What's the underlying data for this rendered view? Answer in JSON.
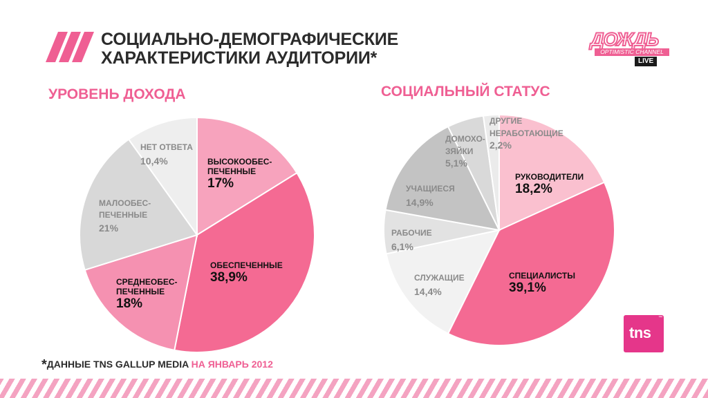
{
  "header": {
    "title_line1": "СОЦИАЛЬНО-ДЕМОГРАФИЧЕСКИЕ",
    "title_line2": "ХАРАКТЕРИСТИКИ АУДИТОРИИ*"
  },
  "logo": {
    "word": "ДОЖДЬ",
    "tagline": "OPTIMISTIC CHANNEL",
    "badge": "LIVE"
  },
  "colors": {
    "accent": "#ef5f93",
    "deep_pink": "#f46a93",
    "light_pink": "#f7a3bd",
    "pale_pink": "#fac0cf",
    "grey": "#c6c6c6",
    "light_grey": "#e4e4e4",
    "pale_grey": "#f0f0f0",
    "tns": "#e5368a"
  },
  "chart_data": [
    {
      "type": "pie",
      "title": "УРОВЕНЬ ДОХОДА",
      "slices": [
        {
          "label": "ВЫСОКООБЕС-ПЕЧЕННЫЕ",
          "label_line1": "ВЫСОКООБЕС-",
          "label_line2": "ПЕЧЕННЫЕ",
          "value": 17,
          "display": "17%",
          "color": "#f7a3bd"
        },
        {
          "label": "ОБЕСПЕЧЕННЫЕ",
          "label_line1": "ОБЕСПЕЧЕННЫЕ",
          "value": 38.9,
          "display": "38,9%",
          "color": "#f46a93"
        },
        {
          "label": "СРЕДНЕОБЕС-ПЕЧЕННЫЕ",
          "label_line1": "СРЕДНЕОБЕС-",
          "label_line2": "ПЕЧЕННЫЕ",
          "value": 18,
          "display": "18%",
          "color": "#f591b1"
        },
        {
          "label": "МАЛООБЕС-ПЕЧЕННЫЕ",
          "label_line1": "МАЛООБЕС-",
          "label_line2": "ПЕЧЕННЫЕ",
          "value": 21,
          "display": "21%",
          "color": "#d8d8d8"
        },
        {
          "label": "НЕТ ОТВЕТА",
          "label_line1": "НЕТ ОТВЕТА",
          "value": 10.4,
          "display": "10,4%",
          "color": "#eeeeee"
        }
      ]
    },
    {
      "type": "pie",
      "title": "СОЦИАЛЬНЫЙ СТАТУС",
      "slices": [
        {
          "label": "РУКОВОДИТЕЛИ",
          "label_line1": "РУКОВОДИТЕЛИ",
          "value": 18.2,
          "display": "18,2%",
          "color": "#fac0cf"
        },
        {
          "label": "СПЕЦИАЛИСТЫ",
          "label_line1": "СПЕЦИАЛИСТЫ",
          "value": 39.1,
          "display": "39,1%",
          "color": "#f46a93"
        },
        {
          "label": "СЛУЖАЩИЕ",
          "label_line1": "СЛУЖАЩИЕ",
          "value": 14.4,
          "display": "14,4%",
          "color": "#f2f2f2"
        },
        {
          "label": "РАБОЧИЕ",
          "label_line1": "РАБОЧИЕ",
          "value": 6.1,
          "display": "6,1%",
          "color": "#e2e2e2"
        },
        {
          "label": "УЧАЩИЕСЯ",
          "label_line1": "УЧАЩИЕСЯ",
          "value": 14.9,
          "display": "14,9%",
          "color": "#c3c3c3"
        },
        {
          "label": "ДОМОХОЗЯЙКИ",
          "label_line1": "ДОМОХО-",
          "label_line2": "ЗЯЙКИ",
          "value": 5.1,
          "display": "5,1%",
          "color": "#d9d9d9"
        },
        {
          "label": "ДРУГИЕ НЕРАБОТАЮЩИЕ",
          "label_line1": "ДРУГИЕ",
          "label_line2": "НЕРАБОТАЮЩИЕ",
          "value": 2.2,
          "display": "2,2%",
          "color": "#ebebeb"
        }
      ]
    }
  ],
  "tns_logo": {
    "text": "tns",
    "mark": "™"
  },
  "footnote": {
    "star": "*",
    "text": "ДАННЫЕ TNS GALLUP MEDIA",
    "date": "НА ЯНВАРЬ 2012"
  }
}
